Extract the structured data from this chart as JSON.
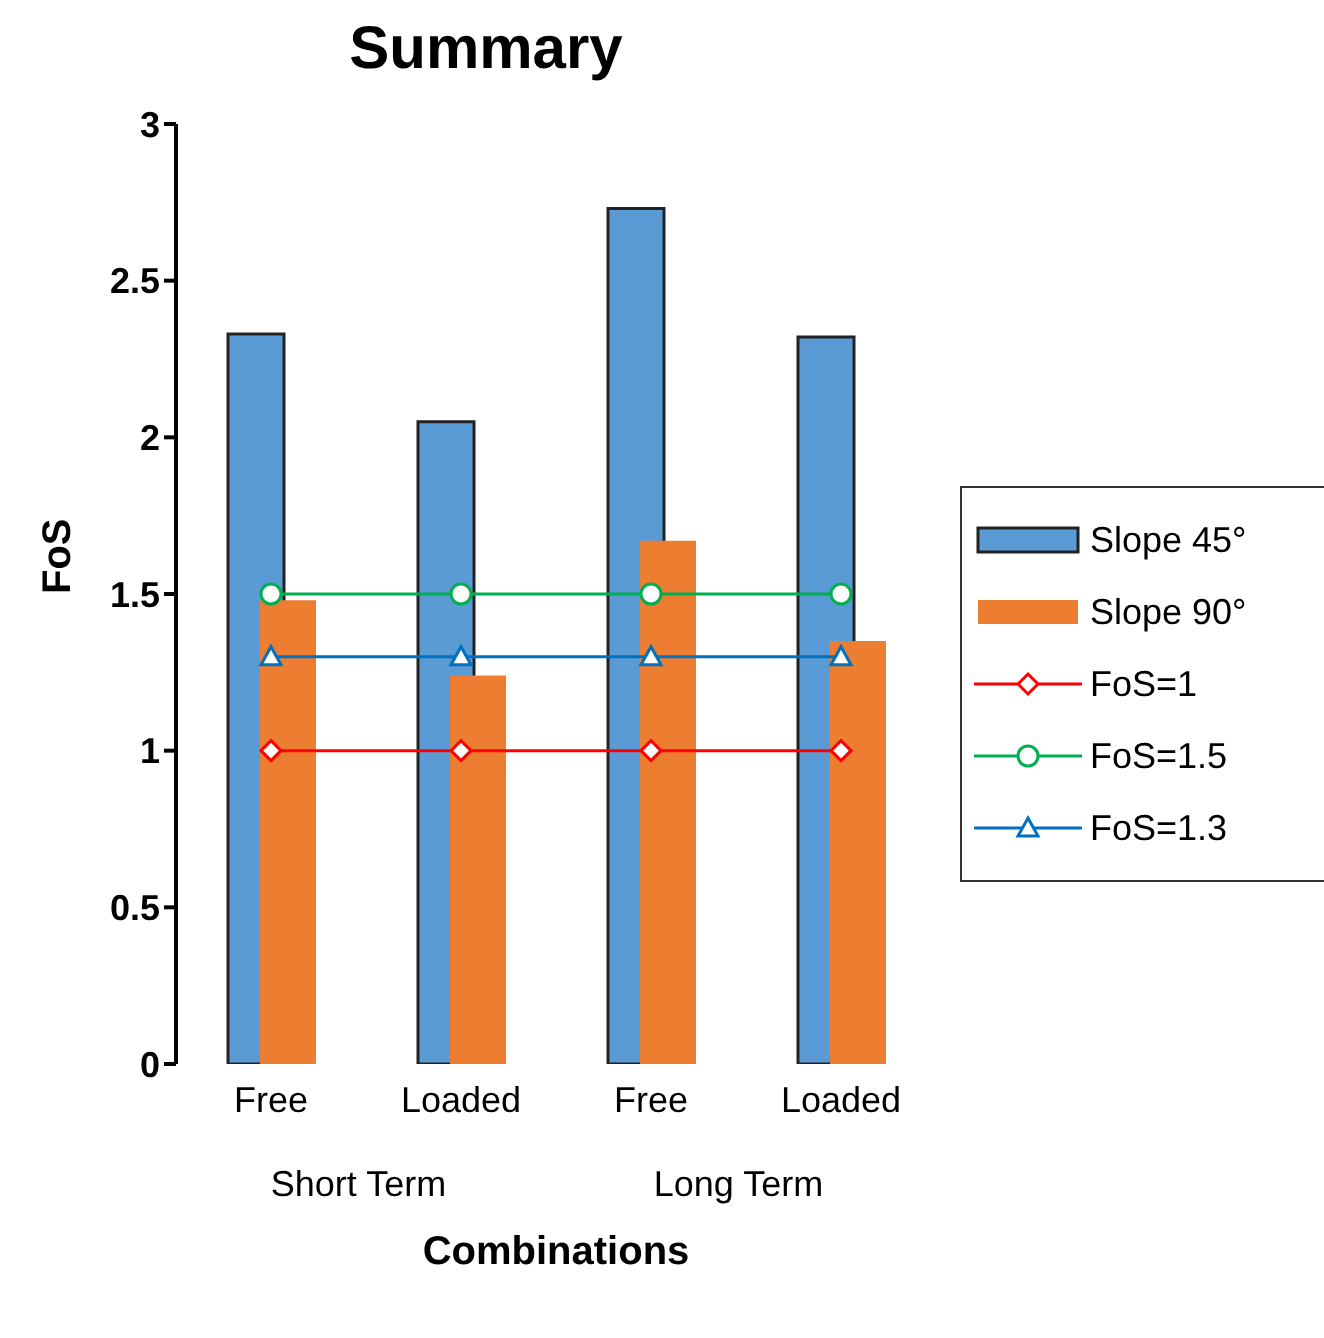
{
  "chart_data": {
    "type": "bar",
    "title": "Summary",
    "xlabel": "Combinations",
    "ylabel": "FoS",
    "categories": [
      "Free",
      "Loaded",
      "Free",
      "Loaded"
    ],
    "annotations": [
      "Short Term",
      "Long Term"
    ],
    "series": [
      {
        "name": "Slope 45°",
        "color": "#5b9bd5",
        "values": [
          2.33,
          2.05,
          2.73,
          2.32
        ]
      },
      {
        "name": "Slope 90°",
        "color": "#ed7d31",
        "values": [
          1.48,
          1.24,
          1.67,
          1.35
        ]
      },
      {
        "name": "FoS=1",
        "type": "line",
        "color": "#ff0000",
        "marker": "diamond",
        "values": [
          1,
          1,
          1,
          1
        ]
      },
      {
        "name": "FoS=1.5",
        "type": "line",
        "color": "#00b050",
        "marker": "circle",
        "values": [
          1.5,
          1.5,
          1.5,
          1.5
        ]
      },
      {
        "name": "FoS=1.3",
        "type": "line",
        "color": "#0070c0",
        "marker": "triangle",
        "values": [
          1.3,
          1.3,
          1.3,
          1.3
        ]
      }
    ],
    "ylim": [
      0,
      3
    ],
    "yticks": [
      0,
      0.5,
      1,
      1.5,
      2,
      2.5,
      3
    ],
    "grid": false,
    "legend": "right"
  }
}
